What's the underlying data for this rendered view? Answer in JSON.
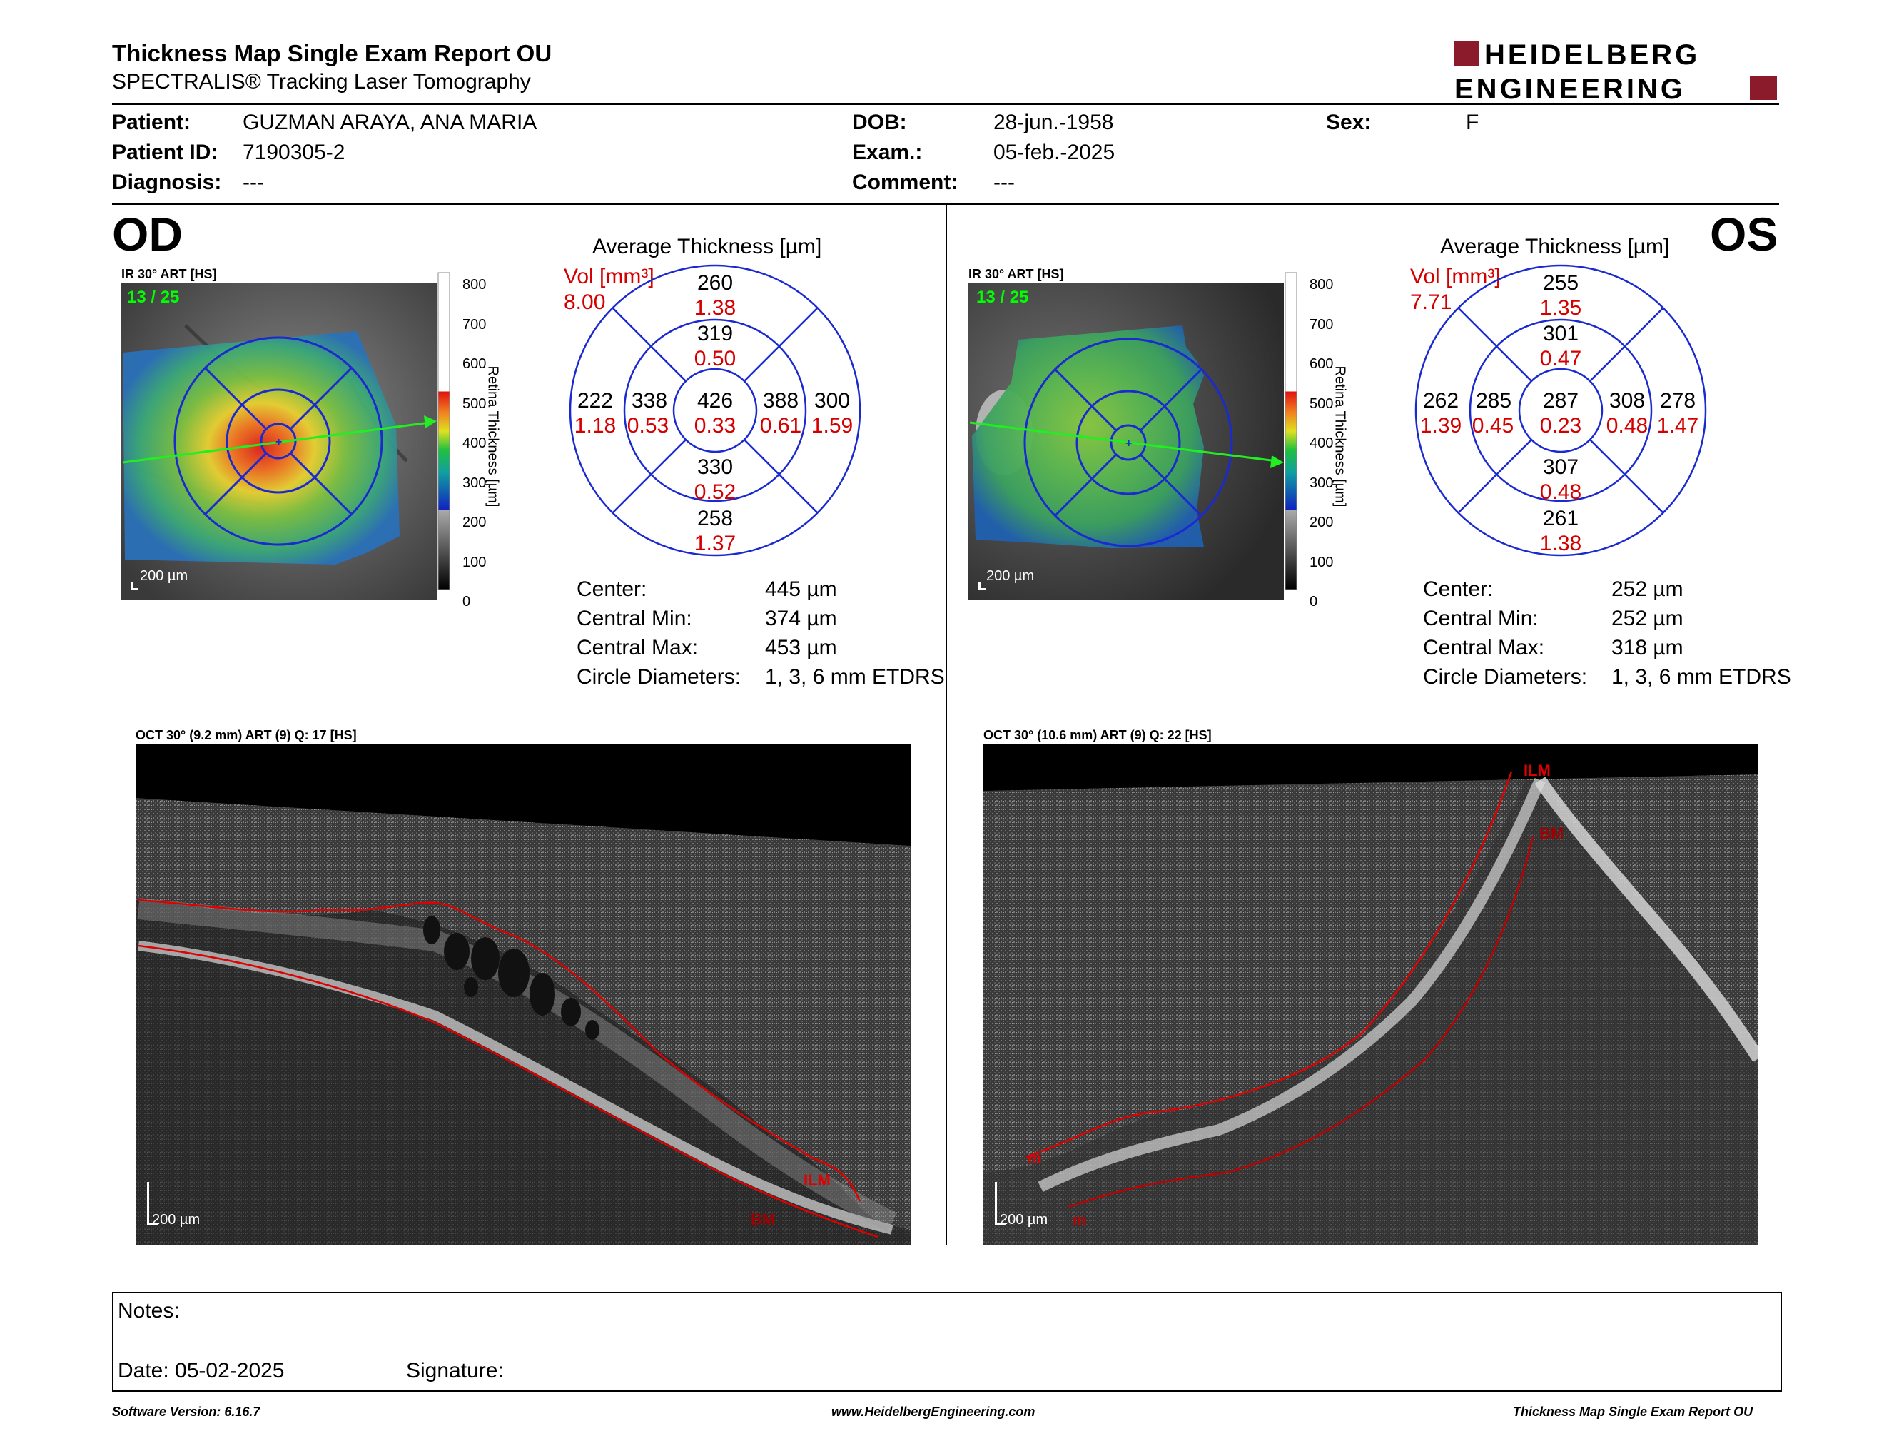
{
  "header": {
    "title": "Thickness Map Single Exam Report OU",
    "subtitle": "SPECTRALIS® Tracking Laser Tomography",
    "logo_line1": "HEIDELBERG",
    "logo_line2": "ENGINEERING",
    "logo_color": "#8b1a2b"
  },
  "patient": {
    "patient_label": "Patient:",
    "patient_value": "GUZMAN ARAYA, ANA MARIA",
    "id_label": "Patient ID:",
    "id_value": "7190305-2",
    "diagnosis_label": "Diagnosis:",
    "diagnosis_value": "---",
    "dob_label": "DOB:",
    "dob_value": "28-jun.-1958",
    "exam_label": "Exam.:",
    "exam_value": "05-feb.-2025",
    "comment_label": "Comment:",
    "comment_value": "---",
    "sex_label": "Sex:",
    "sex_value": "F"
  },
  "od": {
    "eye": "OD",
    "ir_label": "IR 30° ART [HS]",
    "frame": "13 / 25",
    "scale_text": "200 µm",
    "colorbar_ticks": [
      "800",
      "700",
      "600",
      "500",
      "400",
      "300",
      "200",
      "100",
      "0"
    ],
    "colorbar_title": "Retina Thickness [µm]",
    "avg_title": "Average Thickness [µm]",
    "vol_label": "Vol [mm³]",
    "vol_value": "8.00",
    "etdrs": {
      "center": {
        "t": "426",
        "v": "0.33"
      },
      "inner_sup": {
        "t": "319",
        "v": "0.50"
      },
      "inner_inf": {
        "t": "330",
        "v": "0.52"
      },
      "inner_left": {
        "t": "338",
        "v": "0.53"
      },
      "inner_right": {
        "t": "388",
        "v": "0.61"
      },
      "outer_sup": {
        "t": "260",
        "v": "1.38"
      },
      "outer_inf": {
        "t": "258",
        "v": "1.37"
      },
      "outer_left": {
        "t": "222",
        "v": "1.18"
      },
      "outer_right": {
        "t": "300",
        "v": "1.59"
      }
    },
    "stats": {
      "center_label": "Center:",
      "center_value": "445 µm",
      "min_label": "Central Min:",
      "min_value": "374 µm",
      "max_label": "Central Max:",
      "max_value": "453 µm",
      "diam_label": "Circle Diameters:",
      "diam_value": "1, 3, 6 mm ETDRS"
    },
    "oct_label": "OCT 30° (9.2 mm) ART (9) Q: 17 [HS]",
    "oct_scale": "200 µm",
    "ilm": "ILM",
    "bm": "BM"
  },
  "os": {
    "eye": "OS",
    "ir_label": "IR 30° ART [HS]",
    "frame": "13 / 25",
    "scale_text": "200 µm",
    "colorbar_ticks": [
      "800",
      "700",
      "600",
      "500",
      "400",
      "300",
      "200",
      "100",
      "0"
    ],
    "colorbar_title": "Retina Thickness [µm]",
    "avg_title": "Average Thickness [µm]",
    "vol_label": "Vol [mm³]",
    "vol_value": "7.71",
    "etdrs": {
      "center": {
        "t": "287",
        "v": "0.23"
      },
      "inner_sup": {
        "t": "301",
        "v": "0.47"
      },
      "inner_inf": {
        "t": "307",
        "v": "0.48"
      },
      "inner_left": {
        "t": "285",
        "v": "0.45"
      },
      "inner_right": {
        "t": "308",
        "v": "0.48"
      },
      "outer_sup": {
        "t": "255",
        "v": "1.35"
      },
      "outer_inf": {
        "t": "261",
        "v": "1.38"
      },
      "outer_left": {
        "t": "262",
        "v": "1.39"
      },
      "outer_right": {
        "t": "278",
        "v": "1.47"
      }
    },
    "stats": {
      "center_label": "Center:",
      "center_value": "252 µm",
      "min_label": "Central Min:",
      "min_value": "252 µm",
      "max_label": "Central Max:",
      "max_value": "318 µm",
      "diam_label": "Circle Diameters:",
      "diam_value": "1, 3, 6 mm ETDRS"
    },
    "oct_label": "OCT 30° (10.6 mm) ART (9) Q: 22 [HS]",
    "oct_scale": "200 µm",
    "ilm": "ILM",
    "bm": "BM",
    "m1": "m",
    "m2": "m"
  },
  "notes": {
    "notes_label": "Notes:",
    "date_label": "Date: 05-02-2025",
    "signature_label": "Signature:"
  },
  "footer": {
    "software": "Software Version: 6.16.7",
    "website": "www.HeidelbergEngineering.com",
    "report": "Thickness Map Single Exam Report OU"
  },
  "colors": {
    "red_value": "#d40000",
    "ring_blue": "#1a2ad0",
    "green_label": "#00ff00"
  }
}
